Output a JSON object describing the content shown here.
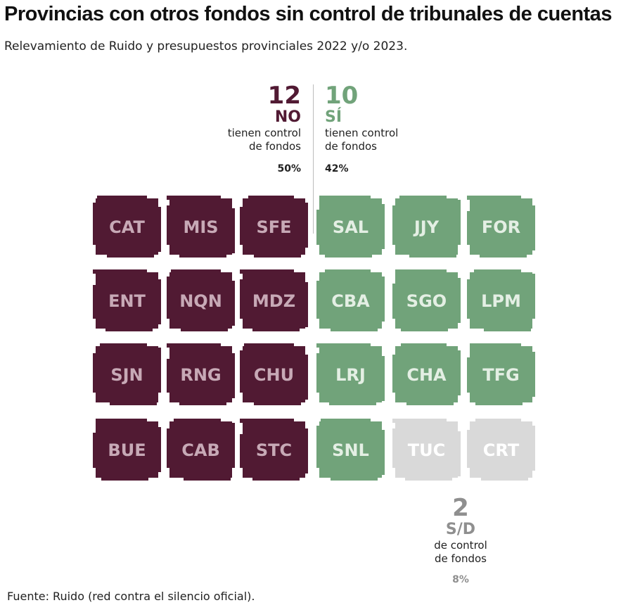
{
  "title": "Provincias con otros fondos sin control de tribunales de cuentas",
  "subtitle": "Relevamiento de Ruido y presupuestos provinciales 2022 y/o 2023.",
  "source": "Fuente: Ruido (red contra el silencio oficial).",
  "summary": {
    "no": {
      "count": "12",
      "label": "NO",
      "desc1": "tienen control",
      "desc2": "de fondos",
      "pct": "50%"
    },
    "si": {
      "count": "10",
      "label": "SÍ",
      "desc1": "tienen control",
      "desc2": "de fondos",
      "pct": "42%"
    },
    "sd": {
      "count": "2",
      "label": "S/D",
      "desc1": "de control",
      "desc2": "de fondos",
      "pct": "8%"
    }
  },
  "colors": {
    "no": "#511a33",
    "si": "#71a37a",
    "sd": "#d9d9d9",
    "label_no": "#c7a9b6",
    "label_si": "#e4efe4",
    "label_sd": "#ffffff"
  },
  "chart_data": {
    "type": "table",
    "categories": [
      "NO",
      "SÍ",
      "S/D"
    ],
    "values": [
      12,
      10,
      2
    ],
    "percentages": [
      50,
      42,
      8
    ],
    "provinces": [
      {
        "code": "CAT",
        "status": "no"
      },
      {
        "code": "MIS",
        "status": "no"
      },
      {
        "code": "SFE",
        "status": "no"
      },
      {
        "code": "SAL",
        "status": "si"
      },
      {
        "code": "JJY",
        "status": "si"
      },
      {
        "code": "FOR",
        "status": "si"
      },
      {
        "code": "ENT",
        "status": "no"
      },
      {
        "code": "NQN",
        "status": "no"
      },
      {
        "code": "MDZ",
        "status": "no"
      },
      {
        "code": "CBA",
        "status": "si"
      },
      {
        "code": "SGO",
        "status": "si"
      },
      {
        "code": "LPM",
        "status": "si"
      },
      {
        "code": "SJN",
        "status": "no"
      },
      {
        "code": "RNG",
        "status": "no"
      },
      {
        "code": "CHU",
        "status": "no"
      },
      {
        "code": "LRJ",
        "status": "si"
      },
      {
        "code": "CHA",
        "status": "si"
      },
      {
        "code": "TFG",
        "status": "si"
      },
      {
        "code": "BUE",
        "status": "no"
      },
      {
        "code": "CAB",
        "status": "no"
      },
      {
        "code": "STC",
        "status": "no"
      },
      {
        "code": "SNL",
        "status": "si"
      },
      {
        "code": "TUC",
        "status": "sd"
      },
      {
        "code": "CRT",
        "status": "sd"
      }
    ]
  }
}
